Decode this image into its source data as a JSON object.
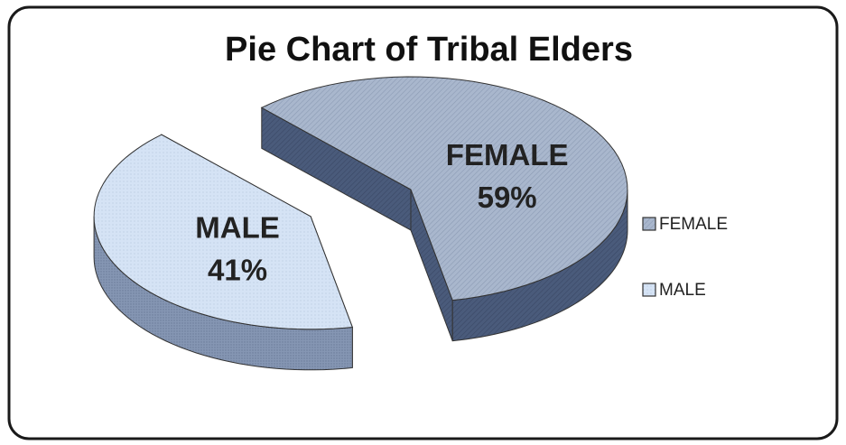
{
  "chart_data": {
    "type": "pie",
    "title": "Pie Chart of Tribal Elders",
    "categories": [
      "FEMALE",
      "MALE"
    ],
    "values": [
      59,
      41
    ],
    "value_labels": [
      "59%",
      "41%"
    ],
    "colors": [
      "#a9b7cd",
      "#d5e3f5"
    ],
    "legend": "right"
  }
}
